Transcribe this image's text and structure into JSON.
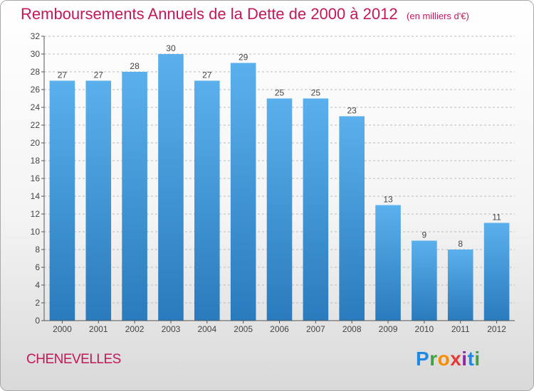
{
  "header": {
    "title": "Remboursements Annuels de la Dette de 2000 à 2012",
    "unit": "(en milliers d'€)"
  },
  "location": "CHENEVELLES",
  "logo": {
    "text": "Proxiti",
    "letters": [
      "P",
      "r",
      "o",
      "x",
      "i",
      "t",
      "i"
    ]
  },
  "colors": {
    "bar_top": "#5ab0ec",
    "bar_bottom": "#2a7bbd",
    "title": "#c2185b",
    "grid": "#bbbbbb"
  },
  "chart_data": {
    "type": "bar",
    "categories": [
      "2000",
      "2001",
      "2002",
      "2003",
      "2004",
      "2005",
      "2006",
      "2007",
      "2008",
      "2009",
      "2010",
      "2011",
      "2012"
    ],
    "values": [
      27,
      27,
      28,
      30,
      27,
      29,
      25,
      25,
      23,
      13,
      9,
      8,
      11
    ],
    "title": "Remboursements Annuels de la Dette de 2000 à 2012",
    "ylim": [
      0,
      32
    ],
    "yticks": [
      0,
      2,
      4,
      6,
      8,
      10,
      12,
      14,
      16,
      18,
      20,
      22,
      24,
      26,
      28,
      30,
      32
    ],
    "grid": "horizontal dashed",
    "legend": "none"
  }
}
